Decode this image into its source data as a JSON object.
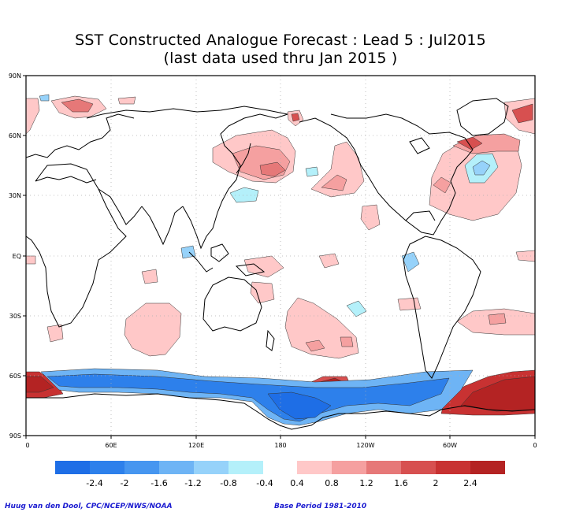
{
  "title": {
    "line1": "SST Constructed Analogue Forecast : Lead 5 : Jul2015",
    "line2": "(last data used thru Jan 2015 )"
  },
  "axes": {
    "lat_labels": [
      "90N",
      "60N",
      "30N",
      "EQ",
      "30S",
      "60S",
      "90S"
    ],
    "lon_labels": [
      "0",
      "60E",
      "120E",
      "180",
      "120W",
      "60W",
      "0"
    ]
  },
  "colorbar": {
    "negative_labels": [
      "-2.4",
      "-2",
      "-1.6",
      "-1.2",
      "-0.8",
      "-0.4"
    ],
    "positive_labels": [
      "0.4",
      "0.8",
      "1.2",
      "1.6",
      "2",
      "2.4"
    ],
    "negative_colors": [
      "#1e6ee6",
      "#2d80eb",
      "#4696f0",
      "#6eb4f5",
      "#96d2fa",
      "#b4f0fa"
    ],
    "positive_colors": [
      "#ffc8c8",
      "#f5a0a0",
      "#e67878",
      "#d75050",
      "#c83232",
      "#b42323"
    ]
  },
  "footer": {
    "credit": "Huug van den Dool, CPC/NCEP/NWS/NOAA",
    "base_period": "Base Period 1981-2010"
  }
}
